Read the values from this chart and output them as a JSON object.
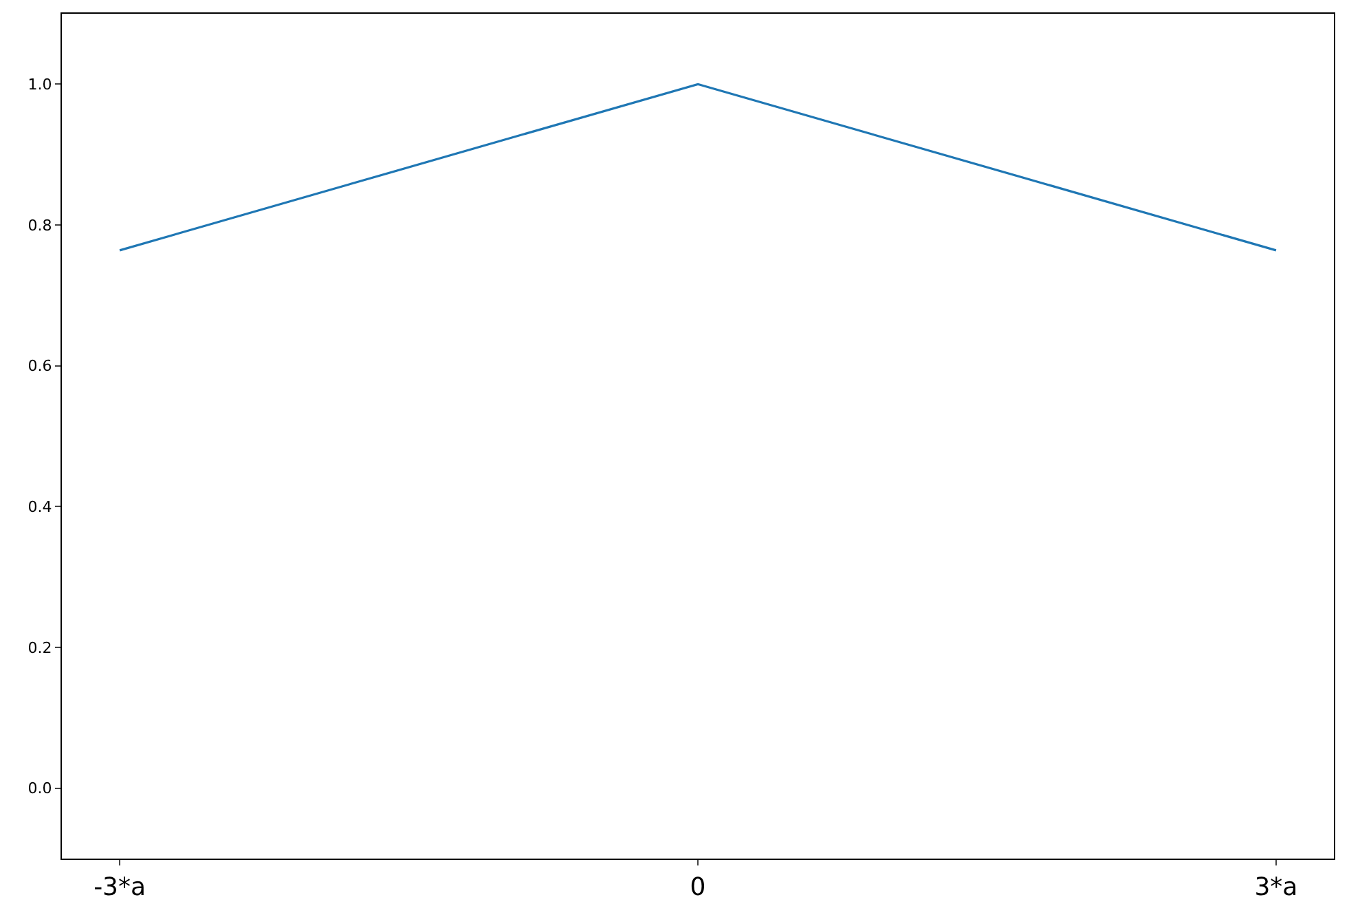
{
  "chart_data": {
    "type": "line",
    "x": [
      -3,
      0,
      3
    ],
    "series": [
      {
        "color": "#1f77b4",
        "values": [
          0.764,
          1.0,
          0.764
        ]
      }
    ],
    "xlim": [
      -3.3,
      3.3
    ],
    "xticks": [
      {
        "value": -3,
        "label": "-3*a"
      },
      {
        "value": 0,
        "label": "0"
      },
      {
        "value": 3,
        "label": "3*a"
      }
    ],
    "ylim": [
      -0.1,
      1.1
    ],
    "yticks": [
      {
        "value": 0,
        "label": "0.0"
      },
      {
        "value": 0.2,
        "label": "0.2"
      },
      {
        "value": 0.4,
        "label": "0.4"
      },
      {
        "value": 0.6,
        "label": "0.6"
      },
      {
        "value": 0.8,
        "label": "0.8"
      },
      {
        "value": 1.0,
        "label": "1.0"
      }
    ],
    "line_style": "solid"
  }
}
